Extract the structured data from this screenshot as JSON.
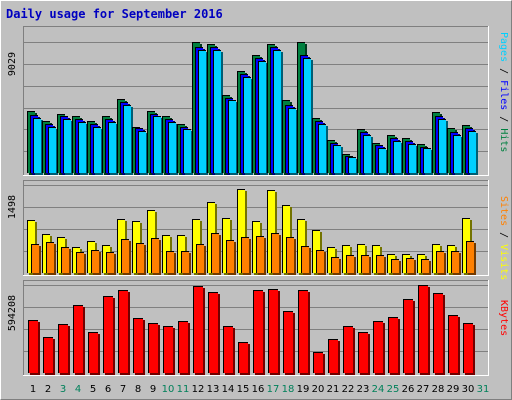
{
  "chart_data": {
    "type": "bar",
    "title": "Daily usage for September 2016",
    "days": [
      "1",
      "2",
      "3",
      "4",
      "5",
      "6",
      "7",
      "8",
      "9",
      "10",
      "11",
      "12",
      "13",
      "14",
      "15",
      "16",
      "17",
      "18",
      "19",
      "20",
      "21",
      "22",
      "23",
      "24",
      "25",
      "26",
      "27",
      "28",
      "29",
      "30",
      "31"
    ],
    "weekend_days": [
      3,
      4,
      10,
      11,
      17,
      18,
      24,
      25,
      31
    ],
    "panels": [
      {
        "name": "hits-pages-files",
        "scale_label": "9029",
        "ymax": 9029,
        "right_labels": [
          "Pages",
          "Files",
          "Hits"
        ],
        "series": [
          {
            "name": "Hits",
            "color": "#008040",
            "values": [
              4300,
              3600,
              4100,
              3900,
              3600,
              3900,
              5100,
              3200,
              4300,
              3900,
              3400,
              9029,
              8900,
              5400,
              7000,
              8100,
              8900,
              5000,
              9029,
              3800,
              2300,
              1300,
              3000,
              2100,
              2600,
              2400,
              2000,
              4200,
              3100,
              3300,
              null
            ]
          },
          {
            "name": "Files",
            "color": "#0000ff",
            "values": [
              4000,
              3400,
              3900,
              3700,
              3400,
              3700,
              4900,
              3100,
              4100,
              3700,
              3200,
              8700,
              8700,
              5200,
              6800,
              7900,
              8700,
              4700,
              8100,
              3600,
              2100,
              1200,
              2800,
              1900,
              2400,
              2200,
              1800,
              3900,
              2800,
              3100,
              null
            ]
          },
          {
            "name": "Pages",
            "color": "#00d0ff",
            "values": [
              3800,
              3200,
              3700,
              3500,
              3200,
              3500,
              4700,
              2900,
              3900,
              3500,
              3000,
              8500,
              8500,
              5000,
              6600,
              7700,
              8500,
              4500,
              7900,
              3400,
              1900,
              1100,
              2600,
              1700,
              2200,
              2000,
              1700,
              3700,
              2600,
              2900,
              null
            ]
          }
        ]
      },
      {
        "name": "visits-sites",
        "scale_label": "1498",
        "ymax": 1498,
        "right_labels": [
          "Sites",
          "Visits"
        ],
        "series": [
          {
            "name": "Visits",
            "color": "#ffff00",
            "values": [
              900,
              660,
              620,
              450,
              540,
              480,
              920,
              880,
              1080,
              650,
              640,
              920,
              1210,
              930,
              1430,
              890,
              1420,
              1150,
              920,
              740,
              440,
              470,
              500,
              470,
              330,
              330,
              320,
              500,
              470,
              940,
              null
            ]
          },
          {
            "name": "Sites",
            "color": "#ff8000",
            "values": [
              490,
              520,
              440,
              350,
              400,
              360,
              580,
              510,
              600,
              380,
              380,
              500,
              680,
              560,
              610,
              630,
              680,
              620,
              460,
              400,
              270,
              300,
              310,
              300,
              230,
              260,
              230,
              380,
              370,
              540,
              null
            ]
          }
        ]
      },
      {
        "name": "kbytes",
        "scale_label": "594208",
        "ymax": 594208,
        "right_labels": [
          "KBytes"
        ],
        "series": [
          {
            "name": "KBytes",
            "color": "#ff0000",
            "values": [
              360000,
              240000,
              330000,
              460000,
              280000,
              520000,
              560000,
              370000,
              340000,
              320000,
              350000,
              590000,
              550000,
              320000,
              210000,
              560000,
              570000,
              420000,
              560000,
              140000,
              230000,
              320000,
              280000,
              350000,
              380000,
              500000,
              594208,
              540000,
              390000,
              340000,
              null
            ]
          }
        ]
      }
    ]
  }
}
